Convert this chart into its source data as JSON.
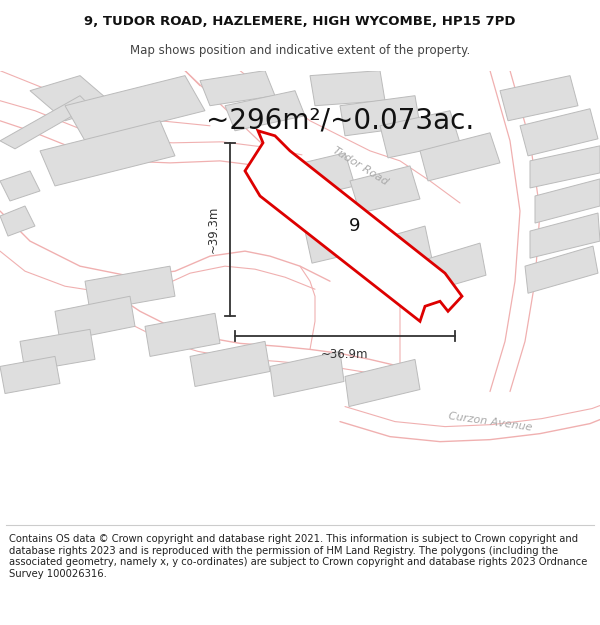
{
  "title_line1": "9, TUDOR ROAD, HAZLEMERE, HIGH WYCOMBE, HP15 7PD",
  "title_line2": "Map shows position and indicative extent of the property.",
  "area_text": "~296m²/~0.073ac.",
  "label_number": "9",
  "dim_vertical": "~39.3m",
  "dim_horizontal": "~36.9m",
  "road_label1": "Tudor Road",
  "road_label2": "Curzon Avenue",
  "footer_text": "Contains OS data © Crown copyright and database right 2021. This information is subject to Crown copyright and database rights 2023 and is reproduced with the permission of HM Land Registry. The polygons (including the associated geometry, namely x, y co-ordinates) are subject to Crown copyright and database rights 2023 Ordnance Survey 100026316.",
  "map_bg": "#f7f4f1",
  "plot_color": "#dd0000",
  "plot_fill": "#ffffff",
  "building_fill": "#dedede",
  "building_edge": "#bbbbbb",
  "road_line_color": "#f0b0b0",
  "road_outline_color": "#e09090",
  "dim_color": "#333333",
  "title_fontsize": 9.5,
  "subtitle_fontsize": 8.5,
  "area_fontsize": 20,
  "number_fontsize": 13,
  "dim_fontsize": 8.5,
  "road_fontsize": 8,
  "footer_fontsize": 7.2
}
